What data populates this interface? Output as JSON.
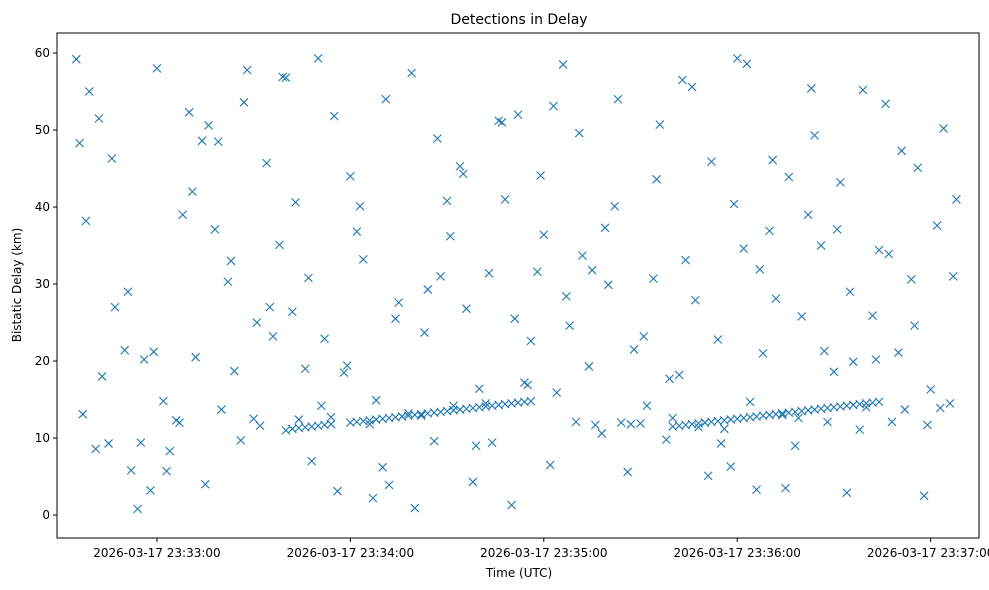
{
  "chart_data": {
    "type": "scatter",
    "title": "Detections in Delay",
    "xlabel": "Time (UTC)",
    "ylabel": "Bistatic Delay (km)",
    "x_axis_type": "datetime",
    "xlim": [
      "2026-03-17 23:32:29",
      "2026-03-17 23:37:15"
    ],
    "ylim": [
      -2.98,
      62.6
    ],
    "x_ticks": [
      "2026-03-17 23:33:00",
      "2026-03-17 23:34:00",
      "2026-03-17 23:35:00",
      "2026-03-17 23:36:00",
      "2026-03-17 23:37:00"
    ],
    "y_ticks": [
      0,
      10,
      20,
      30,
      40,
      50,
      60
    ],
    "marker": "x",
    "grid": false,
    "legend": "none",
    "colors": {
      "series": "#1f77b4",
      "axes": "#000000",
      "background": "#ffffff"
    },
    "series": [
      {
        "x": [
          "2026-03-17 23:32:35",
          "2026-03-17 23:32:37",
          "2026-03-17 23:32:39",
          "2026-03-17 23:32:41",
          "2026-03-17 23:32:43",
          "2026-03-17 23:32:45",
          "2026-03-17 23:32:47",
          "2026-03-17 23:32:50",
          "2026-03-17 23:32:52",
          "2026-03-17 23:32:54",
          "2026-03-17 23:32:56",
          "2026-03-17 23:32:58",
          "2026-03-17 23:33:00",
          "2026-03-17 23:33:02",
          "2026-03-17 23:33:04",
          "2026-03-17 23:33:06",
          "2026-03-17 23:33:08",
          "2026-03-17 23:33:10",
          "2026-03-17 23:33:12",
          "2026-03-17 23:33:14",
          "2026-03-17 23:33:16",
          "2026-03-17 23:33:18",
          "2026-03-17 23:33:20",
          "2026-03-17 23:33:22",
          "2026-03-17 23:33:24",
          "2026-03-17 23:33:26",
          "2026-03-17 23:33:28",
          "2026-03-17 23:33:30",
          "2026-03-17 23:33:32",
          "2026-03-17 23:33:34",
          "2026-03-17 23:33:36",
          "2026-03-17 23:33:38",
          "2026-03-17 23:33:40",
          "2026-03-17 23:33:42",
          "2026-03-17 23:33:44",
          "2026-03-17 23:33:46",
          "2026-03-17 23:33:48",
          "2026-03-17 23:33:50",
          "2026-03-17 23:33:52",
          "2026-03-17 23:33:54",
          "2026-03-17 23:33:56",
          "2026-03-17 23:33:58",
          "2026-03-17 23:34:00",
          "2026-03-17 23:34:02",
          "2026-03-17 23:34:04",
          "2026-03-17 23:34:06",
          "2026-03-17 23:34:08",
          "2026-03-17 23:34:10",
          "2026-03-17 23:34:12",
          "2026-03-17 23:34:14",
          "2026-03-17 23:34:16",
          "2026-03-17 23:34:18",
          "2026-03-17 23:34:20",
          "2026-03-17 23:34:22",
          "2026-03-17 23:34:24",
          "2026-03-17 23:34:26",
          "2026-03-17 23:34:28",
          "2026-03-17 23:34:30",
          "2026-03-17 23:34:32",
          "2026-03-17 23:34:34",
          "2026-03-17 23:34:36",
          "2026-03-17 23:34:38",
          "2026-03-17 23:34:40",
          "2026-03-17 23:34:42",
          "2026-03-17 23:34:44",
          "2026-03-17 23:34:46",
          "2026-03-17 23:34:48",
          "2026-03-17 23:34:50",
          "2026-03-17 23:34:52",
          "2026-03-17 23:34:54",
          "2026-03-17 23:34:56",
          "2026-03-17 23:34:58",
          "2026-03-17 23:35:00",
          "2026-03-17 23:35:02",
          "2026-03-17 23:35:04",
          "2026-03-17 23:35:06",
          "2026-03-17 23:35:08",
          "2026-03-17 23:35:10",
          "2026-03-17 23:35:12",
          "2026-03-17 23:35:14",
          "2026-03-17 23:35:16",
          "2026-03-17 23:35:18",
          "2026-03-17 23:35:20",
          "2026-03-17 23:35:22",
          "2026-03-17 23:35:24",
          "2026-03-17 23:35:26",
          "2026-03-17 23:35:28",
          "2026-03-17 23:35:30",
          "2026-03-17 23:35:32",
          "2026-03-17 23:35:34",
          "2026-03-17 23:35:36",
          "2026-03-17 23:35:38",
          "2026-03-17 23:35:40",
          "2026-03-17 23:35:42",
          "2026-03-17 23:35:44",
          "2026-03-17 23:35:46",
          "2026-03-17 23:35:48",
          "2026-03-17 23:35:50",
          "2026-03-17 23:35:52",
          "2026-03-17 23:35:54",
          "2026-03-17 23:35:56",
          "2026-03-17 23:35:58",
          "2026-03-17 23:36:00",
          "2026-03-17 23:36:02",
          "2026-03-17 23:36:04",
          "2026-03-17 23:36:06",
          "2026-03-17 23:36:08",
          "2026-03-17 23:36:10",
          "2026-03-17 23:36:12",
          "2026-03-17 23:36:14",
          "2026-03-17 23:36:16",
          "2026-03-17 23:36:18",
          "2026-03-17 23:36:20",
          "2026-03-17 23:36:22",
          "2026-03-17 23:36:24",
          "2026-03-17 23:36:26",
          "2026-03-17 23:36:28",
          "2026-03-17 23:36:30",
          "2026-03-17 23:36:32",
          "2026-03-17 23:36:34",
          "2026-03-17 23:36:36",
          "2026-03-17 23:36:38",
          "2026-03-17 23:36:40",
          "2026-03-17 23:36:42",
          "2026-03-17 23:36:44",
          "2026-03-17 23:36:46",
          "2026-03-17 23:36:48",
          "2026-03-17 23:36:50",
          "2026-03-17 23:36:52",
          "2026-03-17 23:36:54",
          "2026-03-17 23:36:56",
          "2026-03-17 23:36:58",
          "2026-03-17 23:37:00",
          "2026-03-17 23:37:02",
          "2026-03-17 23:37:04",
          "2026-03-17 23:37:06",
          "2026-03-17 23:37:08",
          "2026-03-17 23:32:36",
          "2026-03-17 23:32:38",
          "2026-03-17 23:32:42",
          "2026-03-17 23:32:46",
          "2026-03-17 23:32:51",
          "2026-03-17 23:32:55",
          "2026-03-17 23:32:59",
          "2026-03-17 23:33:03",
          "2026-03-17 23:33:07",
          "2026-03-17 23:33:11",
          "2026-03-17 23:33:15",
          "2026-03-17 23:33:19",
          "2026-03-17 23:33:23",
          "2026-03-17 23:33:27",
          "2026-03-17 23:33:31",
          "2026-03-17 23:33:35",
          "2026-03-17 23:33:39",
          "2026-03-17 23:33:43",
          "2026-03-17 23:33:47",
          "2026-03-17 23:33:51",
          "2026-03-17 23:33:55",
          "2026-03-17 23:33:59",
          "2026-03-17 23:34:03",
          "2026-03-17 23:34:07",
          "2026-03-17 23:34:11",
          "2026-03-17 23:34:15",
          "2026-03-17 23:34:19",
          "2026-03-17 23:34:23",
          "2026-03-17 23:34:27",
          "2026-03-17 23:34:31",
          "2026-03-17 23:34:35",
          "2026-03-17 23:34:39",
          "2026-03-17 23:34:43",
          "2026-03-17 23:34:47",
          "2026-03-17 23:34:51",
          "2026-03-17 23:34:55",
          "2026-03-17 23:34:59",
          "2026-03-17 23:35:03",
          "2026-03-17 23:35:07",
          "2026-03-17 23:35:11",
          "2026-03-17 23:35:15",
          "2026-03-17 23:35:19",
          "2026-03-17 23:35:23",
          "2026-03-17 23:35:27",
          "2026-03-17 23:35:31",
          "2026-03-17 23:35:35",
          "2026-03-17 23:35:39",
          "2026-03-17 23:35:43",
          "2026-03-17 23:35:47",
          "2026-03-17 23:35:51",
          "2026-03-17 23:35:55",
          "2026-03-17 23:35:59",
          "2026-03-17 23:36:03",
          "2026-03-17 23:36:07",
          "2026-03-17 23:36:11",
          "2026-03-17 23:36:15",
          "2026-03-17 23:36:19",
          "2026-03-17 23:36:23",
          "2026-03-17 23:36:27",
          "2026-03-17 23:36:31",
          "2026-03-17 23:36:35",
          "2026-03-17 23:36:39",
          "2026-03-17 23:36:43",
          "2026-03-17 23:36:47",
          "2026-03-17 23:36:51",
          "2026-03-17 23:36:55",
          "2026-03-17 23:36:59",
          "2026-03-17 23:37:03",
          "2026-03-17 23:37:07",
          "2026-03-17 23:33:40",
          "2026-03-17 23:33:42",
          "2026-03-17 23:33:44",
          "2026-03-17 23:33:46",
          "2026-03-17 23:33:48",
          "2026-03-17 23:33:50",
          "2026-03-17 23:33:52",
          "2026-03-17 23:33:54",
          "2026-03-17 23:34:00",
          "2026-03-17 23:34:02",
          "2026-03-17 23:34:04",
          "2026-03-17 23:34:06",
          "2026-03-17 23:34:08",
          "2026-03-17 23:34:10",
          "2026-03-17 23:34:12",
          "2026-03-17 23:34:14",
          "2026-03-17 23:34:16",
          "2026-03-17 23:34:18",
          "2026-03-17 23:34:20",
          "2026-03-17 23:34:22",
          "2026-03-17 23:34:24",
          "2026-03-17 23:34:26",
          "2026-03-17 23:34:28",
          "2026-03-17 23:34:30",
          "2026-03-17 23:34:32",
          "2026-03-17 23:34:34",
          "2026-03-17 23:34:36",
          "2026-03-17 23:34:38",
          "2026-03-17 23:34:40",
          "2026-03-17 23:34:42",
          "2026-03-17 23:34:44",
          "2026-03-17 23:34:46",
          "2026-03-17 23:34:48",
          "2026-03-17 23:34:50",
          "2026-03-17 23:34:52",
          "2026-03-17 23:34:54",
          "2026-03-17 23:34:56",
          "2026-03-17 23:35:40",
          "2026-03-17 23:35:42",
          "2026-03-17 23:35:44",
          "2026-03-17 23:35:46",
          "2026-03-17 23:35:48",
          "2026-03-17 23:35:50",
          "2026-03-17 23:35:52",
          "2026-03-17 23:35:54",
          "2026-03-17 23:35:56",
          "2026-03-17 23:35:58",
          "2026-03-17 23:36:00",
          "2026-03-17 23:36:02",
          "2026-03-17 23:36:04",
          "2026-03-17 23:36:06",
          "2026-03-17 23:36:08",
          "2026-03-17 23:36:10",
          "2026-03-17 23:36:12",
          "2026-03-17 23:36:14",
          "2026-03-17 23:36:16",
          "2026-03-17 23:36:18",
          "2026-03-17 23:36:20",
          "2026-03-17 23:36:22",
          "2026-03-17 23:36:24",
          "2026-03-17 23:36:26",
          "2026-03-17 23:36:28",
          "2026-03-17 23:36:30",
          "2026-03-17 23:36:32",
          "2026-03-17 23:36:34",
          "2026-03-17 23:36:36",
          "2026-03-17 23:36:38",
          "2026-03-17 23:36:40",
          "2026-03-17 23:36:42",
          "2026-03-17 23:36:44"
        ],
        "y": [
          59.2,
          13.1,
          55.0,
          8.6,
          18.0,
          9.3,
          27.0,
          21.4,
          5.8,
          0.8,
          20.2,
          3.2,
          58.0,
          14.8,
          8.3,
          12.3,
          39.0,
          52.3,
          20.5,
          48.6,
          50.6,
          37.1,
          13.7,
          30.3,
          18.7,
          9.7,
          57.8,
          12.5,
          11.6,
          45.7,
          23.2,
          35.1,
          56.8,
          26.4,
          12.4,
          19.0,
          7.0,
          59.3,
          22.9,
          12.7,
          3.1,
          18.5,
          44.0,
          36.8,
          33.2,
          11.8,
          14.9,
          6.2,
          3.9,
          25.5,
          12.8,
          13.2,
          0.9,
          12.9,
          29.3,
          9.6,
          31.0,
          40.8,
          14.2,
          45.3,
          26.8,
          4.3,
          16.4,
          14.5,
          9.4,
          51.2,
          41.0,
          1.3,
          52.0,
          17.2,
          22.6,
          31.6,
          36.4,
          6.5,
          15.9,
          58.5,
          24.6,
          12.1,
          33.7,
          19.3,
          11.7,
          10.6,
          29.9,
          40.1,
          12.0,
          5.6,
          21.5,
          11.9,
          14.2,
          30.7,
          50.7,
          9.8,
          12.6,
          18.2,
          33.1,
          55.6,
          11.4,
          12.0,
          45.9,
          22.8,
          11.2,
          6.3,
          59.3,
          34.6,
          14.7,
          3.3,
          21.0,
          36.9,
          28.1,
          13.0,
          43.9,
          9.0,
          25.8,
          39.0,
          49.3,
          35.0,
          12.1,
          18.6,
          43.2,
          2.9,
          19.9,
          11.1,
          14.0,
          25.9,
          34.4,
          53.4,
          12.1,
          21.1,
          13.7,
          30.6,
          45.1,
          2.5,
          16.3,
          37.6,
          50.2,
          14.5,
          41.0,
          48.3,
          38.2,
          51.5,
          46.3,
          29.0,
          9.4,
          21.2,
          5.7,
          12.0,
          42.0,
          4.0,
          48.5,
          33.0,
          53.6,
          25.0,
          27.0,
          56.9,
          40.6,
          30.8,
          14.2,
          51.8,
          19.4,
          40.1,
          2.2,
          54.0,
          27.6,
          57.4,
          23.7,
          48.9,
          36.2,
          44.3,
          9.0,
          31.4,
          51.0,
          25.5,
          16.9,
          44.1,
          53.1,
          28.4,
          49.6,
          31.8,
          37.3,
          54.0,
          11.8,
          23.2,
          43.6,
          17.7,
          56.5,
          27.9,
          5.1,
          9.3,
          40.4,
          58.6,
          31.9,
          46.1,
          3.5,
          12.6,
          55.4,
          21.3,
          37.1,
          29.0,
          55.2,
          20.2,
          33.9,
          47.3,
          24.6,
          11.7,
          13.9,
          31.0,
          11.0,
          11.2,
          11.3,
          11.4,
          11.5,
          11.6,
          11.7,
          11.8,
          12.0,
          12.1,
          12.2,
          12.3,
          12.4,
          12.5,
          12.6,
          12.7,
          12.8,
          12.9,
          13.0,
          13.1,
          13.2,
          13.3,
          13.4,
          13.5,
          13.6,
          13.7,
          13.8,
          13.9,
          14.0,
          14.1,
          14.2,
          14.3,
          14.4,
          14.5,
          14.6,
          14.7,
          14.8,
          11.5,
          11.6,
          11.7,
          11.8,
          11.9,
          12.0,
          12.1,
          12.2,
          12.3,
          12.4,
          12.5,
          12.6,
          12.7,
          12.8,
          12.9,
          13.0,
          13.1,
          13.2,
          13.3,
          13.4,
          13.5,
          13.6,
          13.7,
          13.8,
          13.9,
          14.0,
          14.1,
          14.2,
          14.3,
          14.4,
          14.5,
          14.6,
          14.7
        ]
      }
    ]
  }
}
